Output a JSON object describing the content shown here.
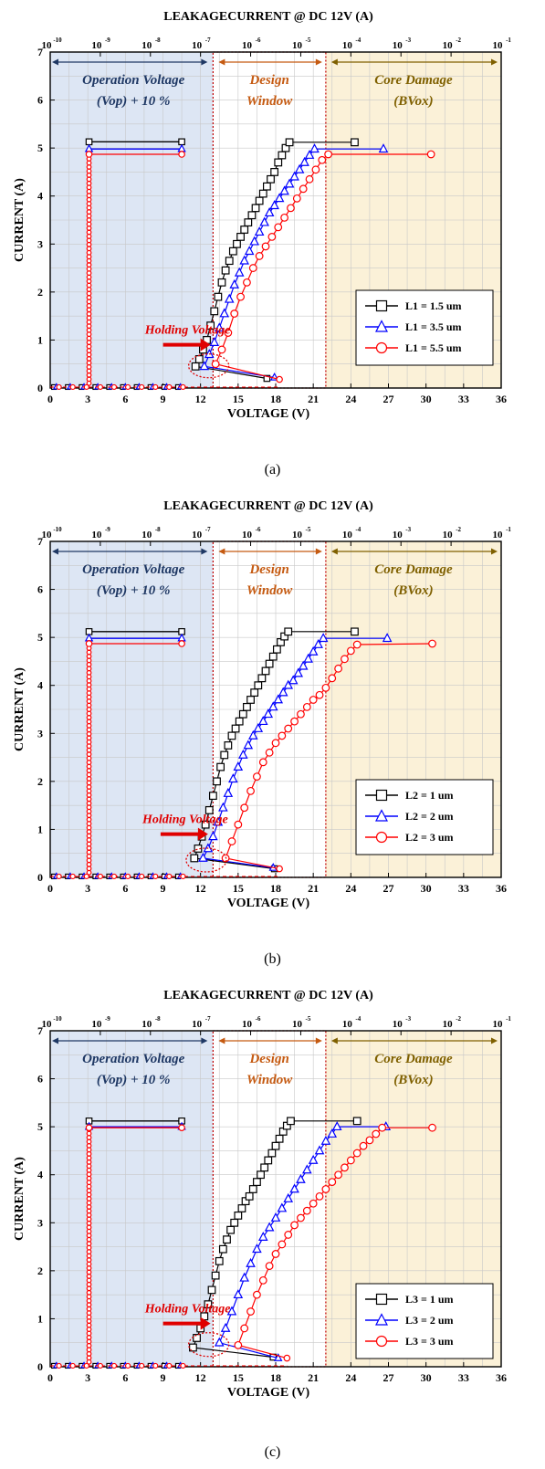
{
  "figure": {
    "captions": [
      "(a)",
      "(b)",
      "(c)"
    ]
  },
  "colors": {
    "operation_region": "#dde6f4",
    "core_region": "#fbf1d8",
    "operation_text": "#1f3864",
    "design_text": "#c55a11",
    "core_text": "#7f6000",
    "holding_text": "#e00000",
    "black_series": "#000000",
    "blue_series": "#0000ff",
    "red_series": "#ff0000"
  },
  "chart_data": [
    {
      "type": "scatter",
      "title": "LEAKAGECURRENT @ DC 12V (A)",
      "xlabel": "VOLTAGE (V)",
      "ylabel": "CURRENT (A)",
      "xlim": [
        0,
        36
      ],
      "ylim": [
        0,
        7
      ],
      "xticks": [
        "0",
        "3",
        "6",
        "9",
        "12",
        "15",
        "18",
        "21",
        "24",
        "27",
        "30",
        "33",
        "36"
      ],
      "yticks": [
        "0",
        "1",
        "2",
        "3",
        "4",
        "5",
        "6",
        "7"
      ],
      "top_ticks": [
        "10",
        "10",
        "10",
        "10",
        "10",
        "10",
        "10",
        "10",
        "10",
        "10"
      ],
      "top_exponents": [
        "-10",
        "-9",
        "-8",
        "-7",
        "-6",
        "-5",
        "-4",
        "-3",
        "-2",
        "-1"
      ],
      "grid": true,
      "legend_position": "bottom-right",
      "regions": {
        "operation": {
          "x_range": [
            0,
            13
          ],
          "label_line1": "Operation Voltage",
          "label_line2": "(Vop) + 10 %"
        },
        "design": {
          "x_range": [
            13,
            22
          ],
          "label_line1": "Design",
          "label_line2": "Window"
        },
        "core": {
          "x_range": [
            22,
            36
          ],
          "label_line1": "Core Damage",
          "label_line2": "(BVox)"
        }
      },
      "annotation": "Holding Voltage",
      "holding_point": [
        12.8,
        0.5
      ],
      "series": [
        {
          "name": "L1 = 1.5 um",
          "color": "#000000",
          "marker": "square",
          "leakage_x": [
            3.1,
            10.5
          ],
          "leakage_y": 5.13,
          "x": [
            11.6,
            11.9,
            12.2,
            12.5,
            12.8,
            13.1,
            13.4,
            13.7,
            14,
            14.3,
            14.6,
            14.9,
            15.2,
            15.5,
            15.8,
            16.1,
            16.4,
            16.7,
            17,
            17.3,
            17.6,
            17.9,
            18.2,
            18.5,
            18.8,
            19.1,
            24.3
          ],
          "y": [
            0.45,
            0.6,
            0.8,
            1.0,
            1.3,
            1.6,
            1.9,
            2.2,
            2.45,
            2.65,
            2.85,
            3.0,
            3.15,
            3.3,
            3.45,
            3.6,
            3.75,
            3.9,
            4.05,
            4.2,
            4.35,
            4.5,
            4.7,
            4.85,
            5.0,
            5.12,
            5.12
          ],
          "snapback_x": [
            11.6,
            17.3
          ],
          "snapback_y": [
            0.45,
            0.2
          ]
        },
        {
          "name": "L1 = 3.5 um",
          "color": "#0000ff",
          "marker": "triangle",
          "leakage_x": [
            3.1,
            10.5
          ],
          "leakage_y": 4.98,
          "x": [
            12.3,
            12.7,
            13.1,
            13.5,
            13.9,
            14.3,
            14.7,
            15.1,
            15.5,
            15.9,
            16.3,
            16.7,
            17.1,
            17.5,
            17.9,
            18.3,
            18.7,
            19.1,
            19.5,
            19.9,
            20.3,
            20.7,
            21.1,
            26.6
          ],
          "y": [
            0.45,
            0.7,
            0.95,
            1.25,
            1.55,
            1.85,
            2.15,
            2.4,
            2.65,
            2.85,
            3.05,
            3.25,
            3.45,
            3.65,
            3.8,
            3.95,
            4.1,
            4.25,
            4.4,
            4.55,
            4.7,
            4.85,
            4.98,
            4.98
          ],
          "snapback_x": [
            12.3,
            17.9
          ],
          "snapback_y": [
            0.45,
            0.22
          ]
        },
        {
          "name": "L1 = 5.5 um",
          "color": "#ff0000",
          "marker": "circle",
          "leakage_x": [
            3.1,
            10.5
          ],
          "leakage_y": 4.87,
          "x": [
            13.2,
            13.7,
            14.2,
            14.7,
            15.2,
            15.7,
            16.2,
            16.7,
            17.2,
            17.7,
            18.2,
            18.7,
            19.2,
            19.7,
            20.2,
            20.7,
            21.2,
            21.7,
            22.2,
            30.4
          ],
          "y": [
            0.5,
            0.8,
            1.15,
            1.55,
            1.9,
            2.2,
            2.5,
            2.75,
            2.95,
            3.15,
            3.35,
            3.55,
            3.75,
            3.95,
            4.15,
            4.35,
            4.55,
            4.75,
            4.87,
            4.87
          ],
          "snapback_x": [
            13.2,
            18.3
          ],
          "snapback_y": [
            0.5,
            0.18
          ]
        }
      ]
    },
    {
      "type": "scatter",
      "title": "LEAKAGECURRENT @ DC 12V (A)",
      "xlabel": "VOLTAGE (V)",
      "ylabel": "CURRENT (A)",
      "xlim": [
        0,
        36
      ],
      "ylim": [
        0,
        7
      ],
      "xticks": [
        "0",
        "3",
        "6",
        "9",
        "12",
        "15",
        "18",
        "21",
        "24",
        "27",
        "30",
        "33",
        "36"
      ],
      "yticks": [
        "0",
        "1",
        "2",
        "3",
        "4",
        "5",
        "6",
        "7"
      ],
      "top_ticks": [
        "10",
        "10",
        "10",
        "10",
        "10",
        "10",
        "10",
        "10",
        "10",
        "10"
      ],
      "top_exponents": [
        "-10",
        "-9",
        "-8",
        "-7",
        "-6",
        "-5",
        "-4",
        "-3",
        "-2",
        "-1"
      ],
      "grid": true,
      "legend_position": "bottom-right",
      "regions": {
        "operation": {
          "x_range": [
            0,
            13
          ],
          "label_line1": "Operation Voltage",
          "label_line2": "(Vop) + 10 %"
        },
        "design": {
          "x_range": [
            13,
            22
          ],
          "label_line1": "Design",
          "label_line2": "Window"
        },
        "core": {
          "x_range": [
            22,
            36
          ],
          "label_line1": "Core Damage",
          "label_line2": "(BVox)"
        }
      },
      "annotation": "Holding Voltage",
      "holding_point": [
        12.6,
        0.4
      ],
      "series": [
        {
          "name": "L2 = 1 um",
          "color": "#000000",
          "marker": "square",
          "leakage_x": [
            3.1,
            10.5
          ],
          "leakage_y": 5.12,
          "x": [
            11.5,
            11.8,
            12.1,
            12.4,
            12.7,
            13.0,
            13.3,
            13.6,
            13.9,
            14.2,
            14.5,
            14.8,
            15.1,
            15.4,
            15.7,
            16.0,
            16.3,
            16.6,
            16.9,
            17.2,
            17.5,
            17.8,
            18.1,
            18.4,
            18.7,
            19.0,
            24.3
          ],
          "y": [
            0.4,
            0.6,
            0.85,
            1.1,
            1.4,
            1.7,
            2.0,
            2.3,
            2.55,
            2.75,
            2.95,
            3.1,
            3.25,
            3.4,
            3.55,
            3.7,
            3.85,
            4.0,
            4.15,
            4.3,
            4.45,
            4.6,
            4.75,
            4.9,
            5.02,
            5.12,
            5.12
          ],
          "snapback_x": [
            11.5,
            17.9
          ],
          "snapback_y": [
            0.4,
            0.18
          ]
        },
        {
          "name": "L2 = 2 um",
          "color": "#0000ff",
          "marker": "triangle",
          "leakage_x": [
            3.1,
            10.5
          ],
          "leakage_y": 4.98,
          "x": [
            12.2,
            12.6,
            13.0,
            13.4,
            13.8,
            14.2,
            14.6,
            15.0,
            15.4,
            15.8,
            16.2,
            16.6,
            17.0,
            17.4,
            17.8,
            18.2,
            18.6,
            19.0,
            19.4,
            19.8,
            20.2,
            20.6,
            21.0,
            21.4,
            21.8,
            26.9
          ],
          "y": [
            0.4,
            0.6,
            0.85,
            1.15,
            1.45,
            1.75,
            2.05,
            2.3,
            2.55,
            2.75,
            2.95,
            3.1,
            3.25,
            3.4,
            3.55,
            3.7,
            3.85,
            4.0,
            4.1,
            4.25,
            4.4,
            4.55,
            4.7,
            4.85,
            4.98,
            4.98
          ],
          "snapback_x": [
            12.2,
            17.8
          ],
          "snapback_y": [
            0.4,
            0.2
          ]
        },
        {
          "name": "L2 = 3 um",
          "color": "#ff0000",
          "marker": "circle",
          "leakage_x": [
            3.1,
            10.5
          ],
          "leakage_y": 4.87,
          "x": [
            14.0,
            14.5,
            15.0,
            15.5,
            16.0,
            16.5,
            17.0,
            17.5,
            18.0,
            18.5,
            19.0,
            19.5,
            20.0,
            20.5,
            21.0,
            21.5,
            22.0,
            22.5,
            23.0,
            23.5,
            24.0,
            24.5,
            30.5
          ],
          "y": [
            0.4,
            0.75,
            1.1,
            1.45,
            1.8,
            2.1,
            2.4,
            2.6,
            2.8,
            2.95,
            3.1,
            3.25,
            3.4,
            3.55,
            3.7,
            3.8,
            3.95,
            4.15,
            4.35,
            4.55,
            4.72,
            4.85,
            4.87
          ],
          "snapback_x": [
            14.0,
            18.3
          ],
          "snapback_y": [
            0.4,
            0.18
          ]
        }
      ]
    },
    {
      "type": "scatter",
      "title": "LEAKAGECURRENT @ DC 12V (A)",
      "xlabel": "VOLTAGE (V)",
      "ylabel": "CURRENT (A)",
      "xlim": [
        0,
        36
      ],
      "ylim": [
        0,
        7
      ],
      "xticks": [
        "0",
        "3",
        "6",
        "9",
        "12",
        "15",
        "18",
        "21",
        "24",
        "27",
        "30",
        "33",
        "36"
      ],
      "yticks": [
        "0",
        "1",
        "2",
        "3",
        "4",
        "5",
        "6",
        "7"
      ],
      "top_ticks": [
        "10",
        "10",
        "10",
        "10",
        "10",
        "10",
        "10",
        "10",
        "10",
        "10"
      ],
      "top_exponents": [
        "-10",
        "-9",
        "-8",
        "-7",
        "-6",
        "-5",
        "-4",
        "-3",
        "-2",
        "-1"
      ],
      "grid": true,
      "legend_position": "bottom-right",
      "regions": {
        "operation": {
          "x_range": [
            0,
            13
          ],
          "label_line1": "Operation Voltage",
          "label_line2": "(Vop) + 10 %"
        },
        "design": {
          "x_range": [
            13,
            22
          ],
          "label_line1": "Design",
          "label_line2": "Window"
        },
        "core": {
          "x_range": [
            22,
            36
          ],
          "label_line1": "Core Damage",
          "label_line2": "(BVox)"
        }
      },
      "annotation": "Holding Voltage",
      "holding_point": [
        12.8,
        0.5
      ],
      "series": [
        {
          "name": "L3 = 1 um",
          "color": "#000000",
          "marker": "square",
          "leakage_x": [
            3.1,
            10.5
          ],
          "leakage_y": 5.12,
          "x": [
            11.4,
            11.7,
            12.0,
            12.3,
            12.6,
            12.9,
            13.2,
            13.5,
            13.8,
            14.1,
            14.4,
            14.7,
            15.0,
            15.3,
            15.6,
            15.9,
            16.2,
            16.5,
            16.8,
            17.1,
            17.4,
            17.7,
            18.0,
            18.3,
            18.6,
            18.9,
            19.2,
            24.5
          ],
          "y": [
            0.4,
            0.6,
            0.8,
            1.05,
            1.3,
            1.6,
            1.9,
            2.2,
            2.45,
            2.65,
            2.85,
            3.0,
            3.15,
            3.3,
            3.45,
            3.55,
            3.7,
            3.85,
            4.0,
            4.15,
            4.3,
            4.45,
            4.6,
            4.75,
            4.9,
            5.02,
            5.12,
            5.12
          ],
          "snapback_x": [
            11.4,
            17.8
          ],
          "snapback_y": [
            0.4,
            0.2
          ]
        },
        {
          "name": "L3 = 2 um",
          "color": "#0000ff",
          "marker": "triangle",
          "leakage_x": [
            3.1,
            10.5
          ],
          "leakage_y": 5.0,
          "x": [
            13.5,
            14.0,
            14.5,
            15.0,
            15.5,
            16.0,
            16.5,
            17.0,
            17.5,
            18.0,
            18.5,
            19.0,
            19.5,
            20.0,
            20.5,
            21.0,
            21.5,
            22.0,
            22.5,
            22.9,
            26.8
          ],
          "y": [
            0.5,
            0.8,
            1.15,
            1.5,
            1.85,
            2.15,
            2.45,
            2.7,
            2.9,
            3.1,
            3.3,
            3.5,
            3.7,
            3.9,
            4.1,
            4.3,
            4.5,
            4.7,
            4.85,
            5.0,
            5.0
          ],
          "snapback_x": [
            13.5,
            18.2
          ],
          "snapback_y": [
            0.5,
            0.18
          ]
        },
        {
          "name": "L3 = 3 um",
          "color": "#ff0000",
          "marker": "circle",
          "leakage_x": [
            3.1,
            10.5
          ],
          "leakage_y": 4.98,
          "x": [
            15.0,
            15.5,
            16.0,
            16.5,
            17.0,
            17.5,
            18.0,
            18.5,
            19.0,
            19.5,
            20.0,
            20.5,
            21.0,
            21.5,
            22.0,
            22.5,
            23.0,
            23.5,
            24.0,
            24.5,
            25.0,
            25.5,
            26.0,
            26.5,
            30.5
          ],
          "y": [
            0.45,
            0.8,
            1.15,
            1.5,
            1.8,
            2.1,
            2.35,
            2.55,
            2.75,
            2.95,
            3.1,
            3.25,
            3.4,
            3.55,
            3.7,
            3.85,
            4.0,
            4.15,
            4.3,
            4.45,
            4.6,
            4.72,
            4.85,
            4.98,
            4.98
          ],
          "snapback_x": [
            15.0,
            18.9
          ],
          "snapback_y": [
            0.45,
            0.18
          ]
        }
      ]
    }
  ]
}
